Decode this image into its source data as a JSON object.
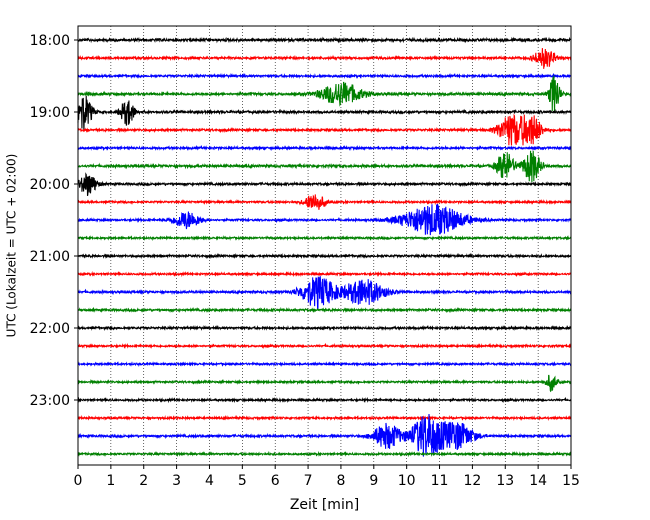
{
  "chart_data": {
    "type": "line",
    "title": "",
    "xlabel": "Zeit  [min]",
    "ylabel": "UTC (Lokalzeit = UTC + 02:00)",
    "xlim": [
      0,
      15
    ],
    "x_ticks": [
      0,
      1,
      2,
      3,
      4,
      5,
      6,
      7,
      8,
      9,
      10,
      11,
      12,
      13,
      14,
      15
    ],
    "x_tick_labels": [
      "0",
      "1",
      "2",
      "3",
      "4",
      "5",
      "6",
      "7",
      "8",
      "9",
      "10",
      "11",
      "12",
      "13",
      "14",
      "15"
    ],
    "y_ticks": [
      "18:00",
      "19:00",
      "20:00",
      "21:00",
      "22:00",
      "23:00"
    ],
    "trace_interval_min": 15,
    "grid": "vertical dotted",
    "trace_colors": [
      "#000000",
      "#ff0000",
      "#0000ff",
      "#008000"
    ],
    "traces": [
      {
        "start": "18:00",
        "color": "#000000",
        "amplitude": 0.5,
        "events": []
      },
      {
        "start": "18:15",
        "color": "#ff0000",
        "amplitude": 0.4,
        "events": [
          {
            "t": 14.2,
            "a": 0.7,
            "w": 0.3
          }
        ]
      },
      {
        "start": "18:30",
        "color": "#0000ff",
        "amplitude": 0.4,
        "events": []
      },
      {
        "start": "18:45",
        "color": "#008000",
        "amplitude": 0.45,
        "events": [
          {
            "t": 8.0,
            "a": 0.8,
            "w": 0.6
          },
          {
            "t": 14.5,
            "a": 1.4,
            "w": 0.15
          }
        ]
      },
      {
        "start": "19:00",
        "color": "#000000",
        "amplitude": 0.45,
        "events": [
          {
            "t": 0.15,
            "a": 1.3,
            "w": 0.25
          },
          {
            "t": 1.5,
            "a": 0.9,
            "w": 0.2
          }
        ]
      },
      {
        "start": "19:15",
        "color": "#ff0000",
        "amplitude": 0.4,
        "events": [
          {
            "t": 13.2,
            "a": 1.1,
            "w": 0.4
          },
          {
            "t": 13.8,
            "a": 1.0,
            "w": 0.3
          }
        ]
      },
      {
        "start": "19:30",
        "color": "#0000ff",
        "amplitude": 0.4,
        "events": []
      },
      {
        "start": "19:45",
        "color": "#008000",
        "amplitude": 0.45,
        "events": [
          {
            "t": 13.0,
            "a": 1.0,
            "w": 0.25
          },
          {
            "t": 13.8,
            "a": 1.1,
            "w": 0.25
          }
        ]
      },
      {
        "start": "20:00",
        "color": "#000000",
        "amplitude": 0.4,
        "events": [
          {
            "t": 0.3,
            "a": 0.8,
            "w": 0.25
          }
        ]
      },
      {
        "start": "20:15",
        "color": "#ff0000",
        "amplitude": 0.35,
        "events": [
          {
            "t": 7.2,
            "a": 0.6,
            "w": 0.3
          }
        ]
      },
      {
        "start": "20:30",
        "color": "#0000ff",
        "amplitude": 0.35,
        "events": [
          {
            "t": 3.3,
            "a": 0.6,
            "w": 0.4
          },
          {
            "t": 10.8,
            "a": 1.1,
            "w": 0.9
          }
        ]
      },
      {
        "start": "20:45",
        "color": "#008000",
        "amplitude": 0.35,
        "events": []
      },
      {
        "start": "21:00",
        "color": "#000000",
        "amplitude": 0.4,
        "events": []
      },
      {
        "start": "21:15",
        "color": "#ff0000",
        "amplitude": 0.35,
        "events": []
      },
      {
        "start": "21:30",
        "color": "#0000ff",
        "amplitude": 0.4,
        "events": [
          {
            "t": 7.3,
            "a": 1.1,
            "w": 0.5
          },
          {
            "t": 8.7,
            "a": 0.9,
            "w": 0.6
          }
        ]
      },
      {
        "start": "21:45",
        "color": "#008000",
        "amplitude": 0.4,
        "events": []
      },
      {
        "start": "22:00",
        "color": "#000000",
        "amplitude": 0.4,
        "events": []
      },
      {
        "start": "22:15",
        "color": "#ff0000",
        "amplitude": 0.35,
        "events": []
      },
      {
        "start": "22:30",
        "color": "#0000ff",
        "amplitude": 0.35,
        "events": []
      },
      {
        "start": "22:45",
        "color": "#008000",
        "amplitude": 0.35,
        "events": [
          {
            "t": 14.4,
            "a": 0.6,
            "w": 0.15
          }
        ]
      },
      {
        "start": "23:00",
        "color": "#000000",
        "amplitude": 0.35,
        "events": []
      },
      {
        "start": "23:15",
        "color": "#ff0000",
        "amplitude": 0.35,
        "events": []
      },
      {
        "start": "23:30",
        "color": "#0000ff",
        "amplitude": 0.4,
        "events": [
          {
            "t": 9.4,
            "a": 0.9,
            "w": 0.4
          },
          {
            "t": 10.6,
            "a": 1.5,
            "w": 0.45
          },
          {
            "t": 11.5,
            "a": 1.0,
            "w": 0.5
          }
        ]
      },
      {
        "start": "23:45",
        "color": "#008000",
        "amplitude": 0.35,
        "events": []
      }
    ]
  }
}
